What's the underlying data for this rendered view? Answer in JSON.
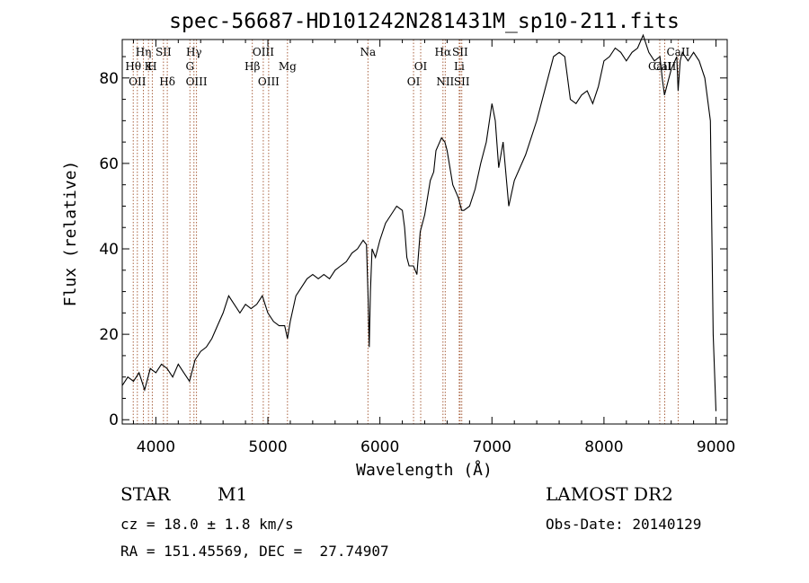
{
  "chart_data": {
    "type": "line",
    "title": "spec-56687-HD101242N281431M_sp10-211.fits",
    "xlabel": "Wavelength (Å)",
    "ylabel": "Flux (relative)",
    "xlim": [
      3700,
      9100
    ],
    "ylim": [
      -1,
      89
    ],
    "xticks": [
      4000,
      5000,
      6000,
      7000,
      8000,
      9000
    ],
    "yticks": [
      0,
      20,
      40,
      60,
      80
    ],
    "grid": false,
    "series": [
      {
        "color": "#000000",
        "points": [
          [
            3700,
            8
          ],
          [
            3750,
            10
          ],
          [
            3800,
            9
          ],
          [
            3850,
            11
          ],
          [
            3900,
            7
          ],
          [
            3950,
            12
          ],
          [
            4000,
            11
          ],
          [
            4050,
            13
          ],
          [
            4100,
            12
          ],
          [
            4150,
            10
          ],
          [
            4200,
            13
          ],
          [
            4250,
            11
          ],
          [
            4300,
            9
          ],
          [
            4350,
            14
          ],
          [
            4400,
            16
          ],
          [
            4450,
            17
          ],
          [
            4500,
            19
          ],
          [
            4550,
            22
          ],
          [
            4600,
            25
          ],
          [
            4650,
            29
          ],
          [
            4700,
            27
          ],
          [
            4750,
            25
          ],
          [
            4800,
            27
          ],
          [
            4850,
            26
          ],
          [
            4900,
            27
          ],
          [
            4950,
            29
          ],
          [
            5000,
            25
          ],
          [
            5050,
            23
          ],
          [
            5100,
            22
          ],
          [
            5150,
            22
          ],
          [
            5175,
            19
          ],
          [
            5200,
            23
          ],
          [
            5250,
            29
          ],
          [
            5300,
            31
          ],
          [
            5350,
            33
          ],
          [
            5400,
            34
          ],
          [
            5450,
            33
          ],
          [
            5500,
            34
          ],
          [
            5550,
            33
          ],
          [
            5600,
            35
          ],
          [
            5650,
            36
          ],
          [
            5700,
            37
          ],
          [
            5750,
            39
          ],
          [
            5800,
            40
          ],
          [
            5850,
            42
          ],
          [
            5880,
            41
          ],
          [
            5895,
            28
          ],
          [
            5905,
            17
          ],
          [
            5915,
            30
          ],
          [
            5930,
            40
          ],
          [
            5960,
            38
          ],
          [
            6000,
            42
          ],
          [
            6050,
            46
          ],
          [
            6100,
            48
          ],
          [
            6150,
            50
          ],
          [
            6200,
            49
          ],
          [
            6220,
            45
          ],
          [
            6240,
            38
          ],
          [
            6260,
            36
          ],
          [
            6300,
            36
          ],
          [
            6330,
            34
          ],
          [
            6360,
            44
          ],
          [
            6400,
            48
          ],
          [
            6450,
            56
          ],
          [
            6480,
            58
          ],
          [
            6500,
            63
          ],
          [
            6550,
            66
          ],
          [
            6580,
            65
          ],
          [
            6600,
            63
          ],
          [
            6650,
            55
          ],
          [
            6700,
            52
          ],
          [
            6730,
            49
          ],
          [
            6750,
            49
          ],
          [
            6800,
            50
          ],
          [
            6850,
            54
          ],
          [
            6900,
            60
          ],
          [
            6950,
            65
          ],
          [
            7000,
            74
          ],
          [
            7030,
            70
          ],
          [
            7060,
            59
          ],
          [
            7100,
            65
          ],
          [
            7150,
            50
          ],
          [
            7200,
            56
          ],
          [
            7300,
            62
          ],
          [
            7400,
            70
          ],
          [
            7500,
            80
          ],
          [
            7550,
            85
          ],
          [
            7600,
            86
          ],
          [
            7650,
            85
          ],
          [
            7700,
            75
          ],
          [
            7750,
            74
          ],
          [
            7800,
            76
          ],
          [
            7850,
            77
          ],
          [
            7900,
            74
          ],
          [
            7950,
            78
          ],
          [
            8000,
            84
          ],
          [
            8050,
            85
          ],
          [
            8100,
            87
          ],
          [
            8150,
            86
          ],
          [
            8200,
            84
          ],
          [
            8250,
            86
          ],
          [
            8300,
            87
          ],
          [
            8350,
            90
          ],
          [
            8400,
            86
          ],
          [
            8450,
            84
          ],
          [
            8500,
            85
          ],
          [
            8520,
            80
          ],
          [
            8540,
            76
          ],
          [
            8560,
            78
          ],
          [
            8600,
            82
          ],
          [
            8650,
            85
          ],
          [
            8662,
            77
          ],
          [
            8680,
            84
          ],
          [
            8700,
            86
          ],
          [
            8750,
            84
          ],
          [
            8800,
            86
          ],
          [
            8850,
            84
          ],
          [
            8900,
            80
          ],
          [
            8950,
            70
          ],
          [
            8975,
            20
          ],
          [
            9000,
            2
          ]
        ]
      }
    ],
    "line_marker_color": "#a0522d",
    "lines": [
      {
        "wl": 3798,
        "label": "Hθ",
        "row": 2
      },
      {
        "wl": 3835,
        "label": "OII",
        "row": 3
      },
      {
        "wl": 3889,
        "label": "Hη",
        "row": 1
      },
      {
        "wl": 3934,
        "label": "K",
        "row": 2
      },
      {
        "wl": 3968,
        "label": "H",
        "row": 2
      },
      {
        "wl": 4068,
        "label": "SII",
        "row": 1
      },
      {
        "wl": 4102,
        "label": "Hδ",
        "row": 3
      },
      {
        "wl": 4304,
        "label": "G",
        "row": 2
      },
      {
        "wl": 4340,
        "label": "Hγ",
        "row": 1
      },
      {
        "wl": 4363,
        "label": "OIII",
        "row": 3
      },
      {
        "wl": 4861,
        "label": "Hβ",
        "row": 2
      },
      {
        "wl": 4959,
        "label": "OIII",
        "row": 1
      },
      {
        "wl": 5007,
        "label": "OIII",
        "row": 3
      },
      {
        "wl": 5175,
        "label": "Mg",
        "row": 2
      },
      {
        "wl": 5893,
        "label": "Na",
        "row": 1
      },
      {
        "wl": 6300,
        "label": "OI",
        "row": 3
      },
      {
        "wl": 6364,
        "label": "OI",
        "row": 2
      },
      {
        "wl": 6563,
        "label": "Hα",
        "row": 1
      },
      {
        "wl": 6583,
        "label": "NII",
        "row": 3
      },
      {
        "wl": 6708,
        "label": "Li",
        "row": 2
      },
      {
        "wl": 6716,
        "label": "SII",
        "row": 1
      },
      {
        "wl": 6731,
        "label": "SII",
        "row": 3
      },
      {
        "wl": 8498,
        "label": "CaII",
        "row": 2
      },
      {
        "wl": 8542,
        "label": "CaII",
        "row": 2
      },
      {
        "wl": 8662,
        "label": "CaII",
        "row": 1
      }
    ]
  },
  "info": {
    "object_class": "STAR",
    "subclass": "M1",
    "survey": "LAMOST DR2",
    "redshift": "cz = 18.0 ± 1.8 km/s",
    "obs_date": "Obs-Date: 20140129",
    "coords": "RA = 151.45569, DEC =  27.74907"
  }
}
